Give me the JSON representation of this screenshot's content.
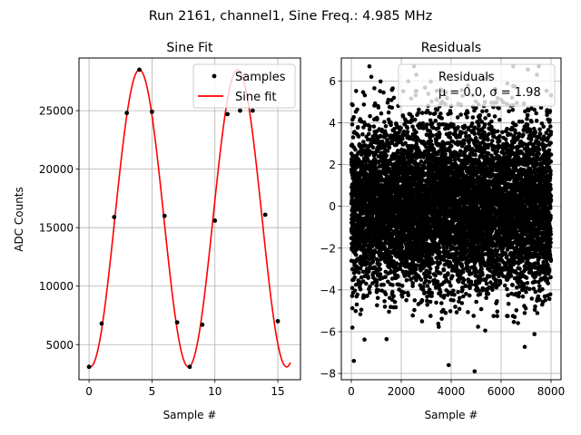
{
  "figure": {
    "suptitle": "Run 2161, channel1, Sine Freq.: 4.985 MHz"
  },
  "chart_data": [
    {
      "type": "scatter",
      "title": "Sine Fit",
      "xlabel": "Sample #",
      "ylabel": "ADC Counts",
      "xlim": [
        -0.8,
        16.8
      ],
      "ylim": [
        2000,
        29500
      ],
      "xticks": [
        0,
        5,
        10,
        15
      ],
      "yticks": [
        5000,
        10000,
        15000,
        20000,
        25000
      ],
      "grid": true,
      "legend_position": "top-right",
      "series": [
        {
          "name": "Samples",
          "kind": "markers",
          "color": "#000000",
          "x": [
            0,
            1,
            2,
            3,
            4,
            5,
            6,
            7,
            8,
            9,
            10,
            11,
            12,
            13,
            14,
            15
          ],
          "y": [
            3100,
            6800,
            15900,
            24800,
            28500,
            24900,
            16000,
            6900,
            3100,
            6700,
            15600,
            24700,
            25000,
            25000,
            16100,
            7000
          ]
        },
        {
          "name": "Sine fit",
          "kind": "line",
          "color": "#ff0000",
          "model": {
            "offset": 15800,
            "amplitude": 12700,
            "period_samples": 7.8,
            "peak_x": 4.0,
            "x_range": [
              0,
              16
            ]
          }
        }
      ]
    },
    {
      "type": "scatter",
      "title": "Residuals",
      "xlabel": "Sample #",
      "ylabel": "",
      "xlim": [
        -400,
        8400
      ],
      "ylim": [
        -8.3,
        7.1
      ],
      "xticks": [
        0,
        2000,
        4000,
        6000,
        8000
      ],
      "yticks": [
        -8,
        -6,
        -4,
        -2,
        0,
        2,
        4,
        6
      ],
      "grid": true,
      "legend_position": "top-right",
      "series": [
        {
          "name": "Residuals",
          "legend_text": "Residuals",
          "legend_stats": "μ = 0.0, σ = 1.98",
          "color": "#000000",
          "n_points": 8000,
          "x_range": [
            0,
            8000
          ],
          "mean": 0.0,
          "std": 1.98,
          "outliers": [
            {
              "x": 100,
              "y": -7.4
            },
            {
              "x": 3900,
              "y": -7.6
            },
            {
              "x": 800,
              "y": 6.2
            },
            {
              "x": 2600,
              "y": 6.3
            },
            {
              "x": 5300,
              "y": 6.1
            }
          ]
        }
      ]
    }
  ]
}
